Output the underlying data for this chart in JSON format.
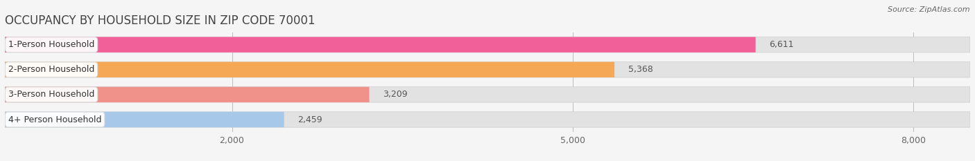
{
  "title": "OCCUPANCY BY HOUSEHOLD SIZE IN ZIP CODE 70001",
  "source": "Source: ZipAtlas.com",
  "categories": [
    "1-Person Household",
    "2-Person Household",
    "3-Person Household",
    "4+ Person Household"
  ],
  "values": [
    6611,
    5368,
    3209,
    2459
  ],
  "bar_colors": [
    "#F2609A",
    "#F5A855",
    "#F0918A",
    "#A8C8EA"
  ],
  "bar_edge_colors": [
    "#D04080",
    "#D08020",
    "#C06860",
    "#6090C0"
  ],
  "xlim_max": 8500,
  "xticks": [
    2000,
    5000,
    8000
  ],
  "xtick_labels": [
    "2,000",
    "5,000",
    "8,000"
  ],
  "bg_color": "#F5F5F5",
  "bar_bg_color": "#E2E2E2",
  "title_fontsize": 12,
  "source_fontsize": 8,
  "label_fontsize": 9,
  "value_fontsize": 9,
  "tick_fontsize": 9
}
